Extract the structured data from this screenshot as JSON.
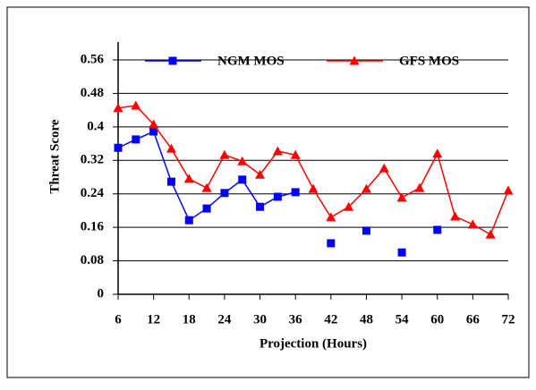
{
  "chart_data": {
    "type": "line",
    "x_label": "Projection (Hours)",
    "y_label": "Threat Score",
    "x": [
      6,
      9,
      12,
      15,
      18,
      21,
      24,
      27,
      30,
      33,
      36,
      39,
      42,
      45,
      48,
      51,
      54,
      57,
      60,
      63,
      66,
      69,
      72
    ],
    "series": [
      {
        "name": "NGM MOS",
        "color": "#0000ff",
        "marker": "square",
        "values": [
          0.35,
          0.37,
          0.389,
          0.269,
          0.177,
          0.205,
          0.242,
          0.274,
          0.209,
          0.233,
          0.244,
          null,
          0.122,
          null,
          0.152,
          null,
          0.1,
          null,
          0.154,
          null,
          null,
          null,
          null
        ]
      },
      {
        "name": "GFS MOS",
        "color": "#ff0000",
        "marker": "triangle",
        "values": [
          0.445,
          0.451,
          0.406,
          0.348,
          0.276,
          0.254,
          0.333,
          0.318,
          0.286,
          0.342,
          0.333,
          0.252,
          0.184,
          0.209,
          0.252,
          0.301,
          0.231,
          0.254,
          0.336,
          0.186,
          0.167,
          0.143,
          0.248
        ]
      }
    ],
    "xlim": [
      6,
      72
    ],
    "xticks": [
      6,
      12,
      18,
      24,
      30,
      36,
      42,
      48,
      54,
      60,
      66,
      72
    ],
    "ylim": [
      0,
      0.56
    ],
    "yticks": [
      0,
      0.08,
      0.16,
      0.24,
      0.32,
      0.4,
      0.48,
      0.56
    ],
    "grid": true,
    "legend": "top"
  }
}
